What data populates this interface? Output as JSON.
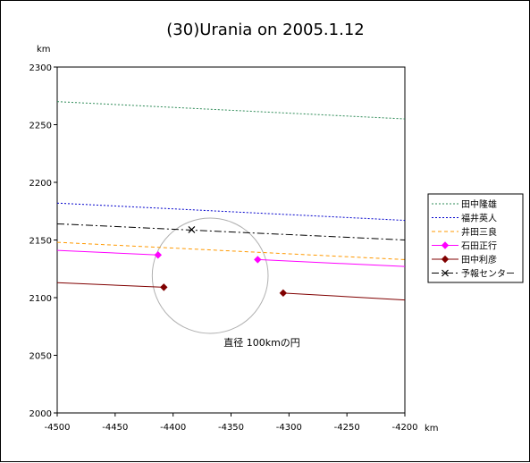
{
  "chart_data": {
    "type": "line",
    "title": "(30)Urania on 2005.1.12",
    "xlabel": "km",
    "ylabel": "km",
    "xlim": [
      -4500,
      -4200
    ],
    "ylim": [
      2000,
      2300
    ],
    "x_ticks": [
      -4500,
      -4450,
      -4400,
      -4350,
      -4300,
      -4250,
      -4200
    ],
    "y_ticks": [
      2000,
      2050,
      2100,
      2150,
      2200,
      2250,
      2300
    ],
    "grid": false,
    "legend_position": "right",
    "series": [
      {
        "name": "田中隆雄",
        "color": "#2e8b57",
        "style": "dotted",
        "marker": "none",
        "segments": [
          [
            [
              -4500,
              2270
            ],
            [
              -4200,
              2255
            ]
          ]
        ]
      },
      {
        "name": "福井英人",
        "color": "#0000cc",
        "style": "dotted",
        "marker": "none",
        "segments": [
          [
            [
              -4500,
              2182
            ],
            [
              -4200,
              2167
            ]
          ]
        ]
      },
      {
        "name": "井田三良",
        "color": "#ff9900",
        "style": "dashed",
        "marker": "none",
        "segments": [
          [
            [
              -4500,
              2148
            ],
            [
              -4200,
              2133
            ]
          ]
        ]
      },
      {
        "name": "石田正行",
        "color": "#ff00ff",
        "style": "solid",
        "marker": "diamond",
        "segments": [
          [
            [
              -4500,
              2141
            ],
            [
              -4413,
              2137
            ]
          ],
          [
            [
              -4327,
              2133
            ],
            [
              -4200,
              2127
            ]
          ]
        ],
        "points": [
          [
            -4413,
            2137
          ],
          [
            -4327,
            2133
          ]
        ]
      },
      {
        "name": "田中利彦",
        "color": "#800000",
        "style": "solid",
        "marker": "diamond",
        "segments": [
          [
            [
              -4500,
              2113
            ],
            [
              -4408,
              2109
            ]
          ],
          [
            [
              -4305,
              2104
            ],
            [
              -4200,
              2098
            ]
          ]
        ],
        "points": [
          [
            -4408,
            2109
          ],
          [
            -4305,
            2104
          ]
        ]
      },
      {
        "name": "予報センター",
        "color": "#000000",
        "style": "dashdot",
        "marker": "x",
        "segments": [
          [
            [
              -4500,
              2164
            ],
            [
              -4200,
              2150
            ]
          ]
        ],
        "points": [
          [
            -4384,
            2159
          ]
        ]
      }
    ],
    "circle": {
      "center": [
        -4368,
        2119
      ],
      "diameter_km": 100,
      "color": "#b0b0b0"
    },
    "annotation": "直径 100kmの円"
  }
}
